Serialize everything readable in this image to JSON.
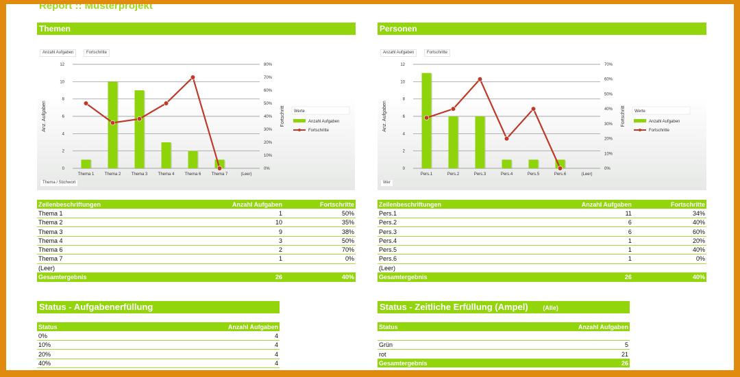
{
  "report_title": "Report :: Musterprojekt",
  "themen": {
    "section_title": "Themen",
    "chart_data": {
      "type": "bar",
      "categories": [
        "Thema 1",
        "Thema 2",
        "Thema 3",
        "Thema 4",
        "Thema 6",
        "Thema 7",
        "(Leer)"
      ],
      "series": [
        {
          "name": "Anzahl Aufgaben",
          "type": "bar",
          "axis": "left",
          "values": [
            1,
            10,
            9,
            3,
            2,
            1,
            null
          ]
        },
        {
          "name": "Fortschritte",
          "type": "line",
          "axis": "right",
          "values": [
            50,
            35,
            38,
            50,
            70,
            0,
            null
          ]
        }
      ],
      "ylabel": "Anz. Aufgaben",
      "y2label": "Fortschritt",
      "ylim": [
        0,
        12
      ],
      "yticks": [
        "0",
        "2",
        "4",
        "6",
        "8",
        "10",
        "12"
      ],
      "y2lim": [
        0,
        80
      ],
      "y2ticks": [
        "0%",
        "10%",
        "20%",
        "30%",
        "40%",
        "50%",
        "60%",
        "70%",
        "80%"
      ],
      "legend_title": "Werte",
      "legend": "right",
      "grid": true,
      "field_buttons": {
        "values": "Anzahl Aufgaben",
        "progress": "Fortschritte",
        "axis": "Thema / Stichwort"
      }
    },
    "table": {
      "headers": [
        "Zeilenbeschriftungen",
        "Anzahl Aufgaben",
        "Fortschritte"
      ],
      "rows": [
        [
          "Thema 1",
          "1",
          "50%"
        ],
        [
          "Thema 2",
          "10",
          "35%"
        ],
        [
          "Thema 3",
          "9",
          "38%"
        ],
        [
          "Thema 4",
          "3",
          "50%"
        ],
        [
          "Thema 6",
          "2",
          "70%"
        ],
        [
          "Thema 7",
          "1",
          "0%"
        ],
        [
          "(Leer)",
          "",
          ""
        ]
      ],
      "total": [
        "Gesamtergebnis",
        "26",
        "40%"
      ]
    }
  },
  "personen": {
    "section_title": "Personen",
    "chart_data": {
      "type": "bar",
      "categories": [
        "Pers.1",
        "Pers.2",
        "Pers.3",
        "Pers.4",
        "Pers.5",
        "Pers.6",
        "(Leer)"
      ],
      "series": [
        {
          "name": "Anzahl Aufgaben",
          "type": "bar",
          "axis": "left",
          "values": [
            11,
            6,
            6,
            1,
            1,
            1,
            null
          ]
        },
        {
          "name": "Fortschritte",
          "type": "line",
          "axis": "right",
          "values": [
            34,
            40,
            60,
            20,
            40,
            0,
            null
          ]
        }
      ],
      "ylabel": "Anz. Aufgaben",
      "y2label": "Fortschritt",
      "ylim": [
        0,
        12
      ],
      "yticks": [
        "0",
        "2",
        "4",
        "6",
        "8",
        "10",
        "12"
      ],
      "y2lim": [
        0,
        70
      ],
      "y2ticks": [
        "0%",
        "10%",
        "20%",
        "30%",
        "40%",
        "50%",
        "60%",
        "70%"
      ],
      "legend_title": "Werte",
      "legend": "right",
      "grid": true,
      "field_buttons": {
        "values": "Anzahl Aufgaben",
        "progress": "Fortschritte",
        "axis": "Wer"
      }
    },
    "table": {
      "headers": [
        "Zeilenbeschriftungen",
        "Anzahl Aufgaben",
        "Fortschritte"
      ],
      "rows": [
        [
          "Pers.1",
          "11",
          "34%"
        ],
        [
          "Pers.2",
          "6",
          "40%"
        ],
        [
          "Pers.3",
          "6",
          "60%"
        ],
        [
          "Pers.4",
          "1",
          "20%"
        ],
        [
          "Pers.5",
          "1",
          "40%"
        ],
        [
          "Pers.6",
          "1",
          "0%"
        ],
        [
          "(Leer)",
          "",
          ""
        ]
      ],
      "total": [
        "Gesamtergebnis",
        "26",
        "40%"
      ]
    }
  },
  "status_aufgaben": {
    "section_title": "Status - Aufgabenerfüllung",
    "headers": [
      "Status",
      "Anzahl Aufgaben"
    ],
    "rows": [
      [
        "0%",
        "4"
      ],
      [
        "10%",
        "4"
      ],
      [
        "20%",
        "4"
      ],
      [
        "40%",
        "4"
      ]
    ]
  },
  "status_ampel": {
    "section_title": "Status - Zeitliche Erfüllung (Ampel)",
    "filter_label": "(Alle)",
    "headers": [
      "Status",
      "Anzahl Aufgaben"
    ],
    "rows": [
      [
        "",
        ""
      ],
      [
        "Grün",
        "5"
      ],
      [
        "rot",
        "21"
      ]
    ],
    "total": [
      "Gesamtergebnis",
      "26"
    ]
  },
  "colors": {
    "accent_green": "#92d50c",
    "bar_green": "#8fd40a",
    "line_red": "#c0392b",
    "frame_orange": "#e08a0e"
  }
}
